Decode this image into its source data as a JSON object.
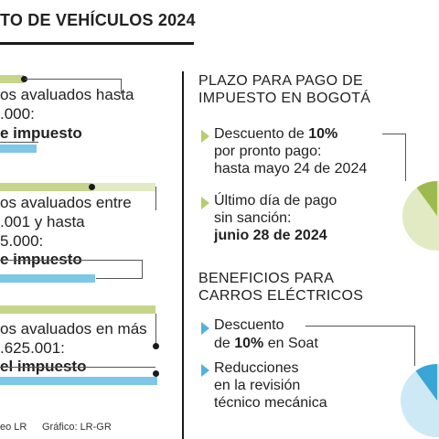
{
  "title": "TO DE VEHÍCULOS 2024",
  "left": {
    "tier1": {
      "line1": "os avaluados hasta",
      "line2": ".000:",
      "line3": "e impuesto"
    },
    "tier2": {
      "line1": "os avaluados entre",
      "line2": ".001 y hasta",
      "line3": "5.000:",
      "line4": "e impuesto"
    },
    "tier3": {
      "line1": "os avaluados en más",
      "line2": ".625.001:",
      "line3": "el impuesto"
    },
    "source": "eo LR",
    "graphic": "Gráfico: LR-GR"
  },
  "right": {
    "section1": {
      "heading1": "PLAZO PARA PAGO DE",
      "heading2": "IMPUESTO EN BOGOTÁ",
      "item1": {
        "prefix": "Descuento de ",
        "bold": "10%",
        "line2": "por pronto pago:",
        "line3": "hasta mayo 24 de 2024"
      },
      "item2": {
        "line1": "Último día de pago",
        "line2": "sin sanción:",
        "line3": "junio 28 de 2024"
      }
    },
    "section2": {
      "heading1": "BENEFICIOS PARA",
      "heading2": "CARROS ELÉCTRICOS",
      "item1": {
        "line1": "Descuento",
        "prefix": "de ",
        "bold": "10%",
        "suffix": " en Soat"
      },
      "item2": {
        "line1": "Reducciones",
        "line2": "en la revisión",
        "line3": "técnico mecánica"
      }
    }
  },
  "colors": {
    "green": "#c5d58a",
    "light_green": "#e2eac3",
    "blue": "#7cc8e6",
    "pie_green_fill": "#e2eac3",
    "pie_green_slice": "#9dba4e",
    "pie_blue_fill": "#cde9f5",
    "pie_blue_slice": "#3aa6d6"
  },
  "discount_fraction": 0.1
}
